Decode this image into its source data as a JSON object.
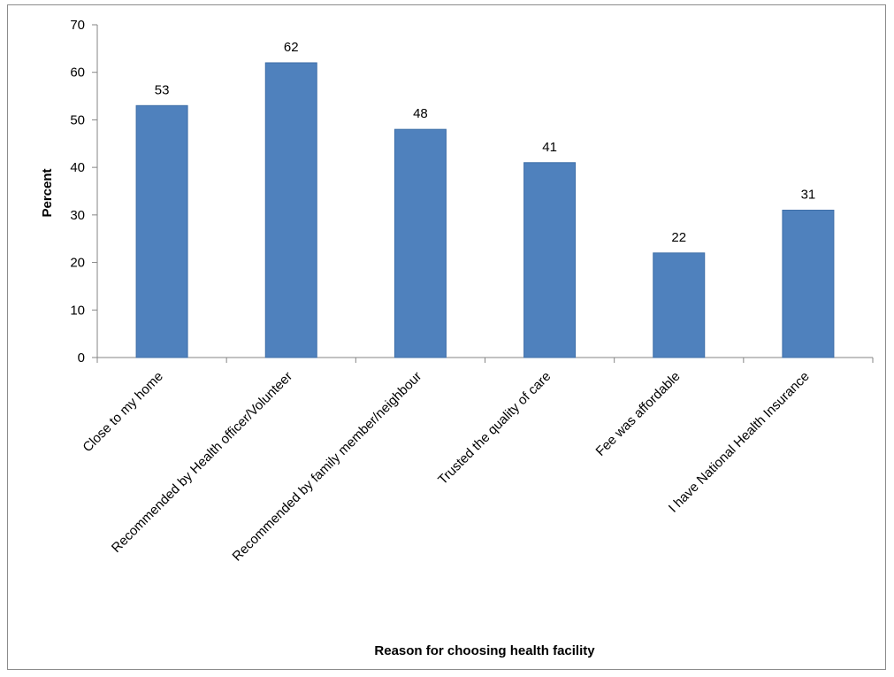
{
  "chart_data": {
    "type": "bar",
    "categories": [
      "Close to my home",
      "Recommended by Health officer/Volunteer",
      "Recommended by family member/neighbour",
      "Trusted the quality of care",
      "Fee was affordable",
      "I have National Health Insurance"
    ],
    "values": [
      53,
      62,
      48,
      41,
      22,
      31
    ],
    "data_labels": [
      "53",
      "62",
      "48",
      "41",
      "22",
      "31"
    ],
    "xlabel": "Reason for choosing health facility",
    "ylabel": "Percent",
    "ylim": [
      0,
      70
    ],
    "yticks": [
      0,
      10,
      20,
      30,
      40,
      50,
      60,
      70
    ],
    "bar_color": "#4f81bd",
    "grid": false,
    "legend": "none"
  }
}
